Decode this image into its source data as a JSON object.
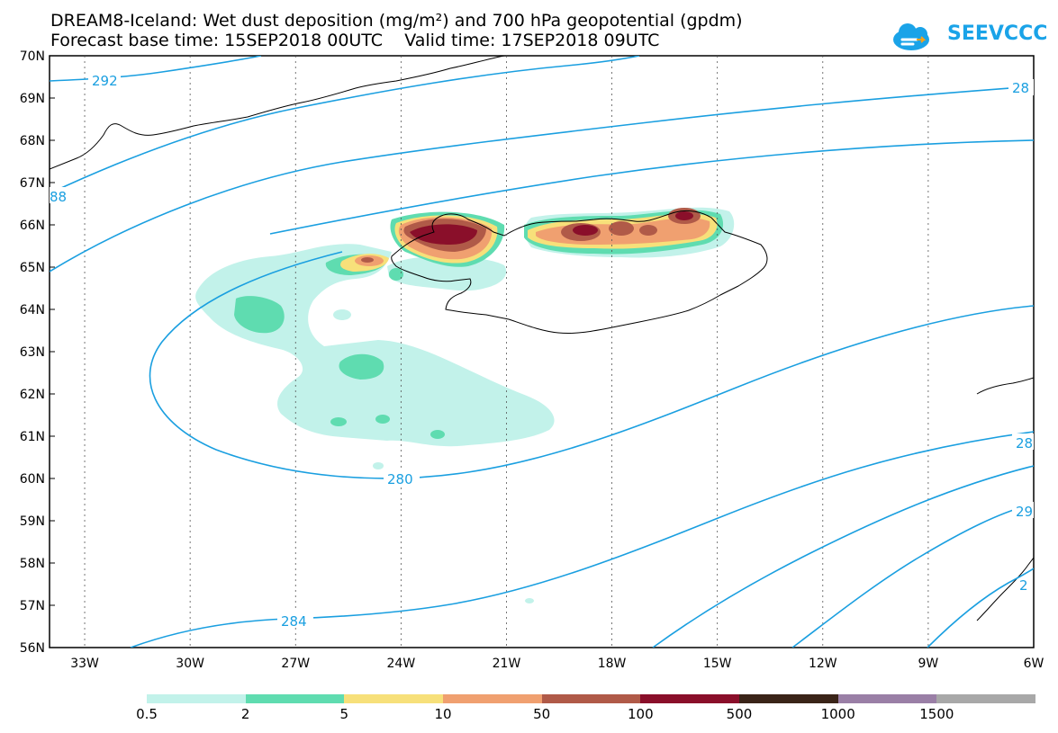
{
  "title_line1": "DREAM8-Iceland: Wet dust deposition (mg/m²) and 700 hPa geopotential (gpdm)",
  "title_line2": "Forecast base time: 15SEP2018 00UTC    Valid time: 17SEP2018 09UTC",
  "logo_text": "SEEVCCC",
  "lat_labels": [
    "70N",
    "69N",
    "68N",
    "67N",
    "66N",
    "65N",
    "64N",
    "63N",
    "62N",
    "61N",
    "60N",
    "59N",
    "58N",
    "57N",
    "56N"
  ],
  "lon_labels": [
    "33W",
    "30W",
    "27W",
    "24W",
    "21W",
    "18W",
    "15W",
    "12W",
    "9W",
    "6W"
  ],
  "contour_labels": [
    "292",
    "28",
    "88",
    "280",
    "284",
    "28",
    "29",
    "2"
  ],
  "legend": {
    "colors": [
      "#c2f2ea",
      "#5fdcb0",
      "#f7e07a",
      "#f0a070",
      "#b05a48",
      "#8a0f2a",
      "#3a2418",
      "#9a7fa6",
      "#a8a8a8"
    ],
    "labels": [
      "0.5",
      "2",
      "5",
      "10",
      "50",
      "100",
      "500",
      "1000",
      "1500"
    ]
  }
}
